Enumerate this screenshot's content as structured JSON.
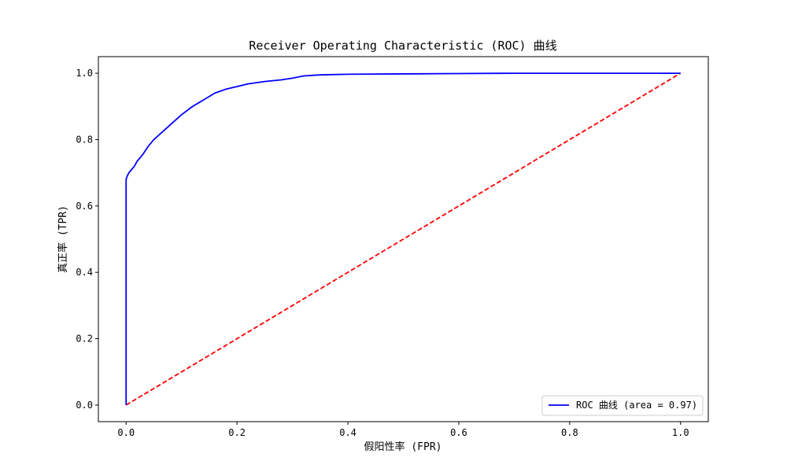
{
  "chart_data": {
    "type": "line",
    "title": "Receiver Operating Characteristic (ROC) 曲线",
    "xlabel": "假阳性率 (FPR)",
    "ylabel": "真正率 (TPR)",
    "xlim": [
      -0.05,
      1.05
    ],
    "ylim": [
      -0.05,
      1.05
    ],
    "xticks": [
      0.0,
      0.2,
      0.4,
      0.6,
      0.8,
      1.0
    ],
    "yticks": [
      0.0,
      0.2,
      0.4,
      0.6,
      0.8,
      1.0
    ],
    "xtick_labels": [
      "0.0",
      "0.2",
      "0.4",
      "0.6",
      "0.8",
      "1.0"
    ],
    "ytick_labels": [
      "0.0",
      "0.2",
      "0.4",
      "0.6",
      "0.8",
      "1.0"
    ],
    "grid": false,
    "legend_position": "lower-right",
    "series": [
      {
        "name": "ROC 曲线 (area = 0.97)",
        "color": "#0000ff",
        "style": "solid",
        "x": [
          0.0,
          0.0,
          0.002,
          0.005,
          0.01,
          0.015,
          0.02,
          0.025,
          0.03,
          0.04,
          0.05,
          0.06,
          0.07,
          0.08,
          0.1,
          0.12,
          0.14,
          0.16,
          0.18,
          0.2,
          0.22,
          0.25,
          0.28,
          0.3,
          0.32,
          0.35,
          0.4,
          0.5,
          0.6,
          0.7,
          0.8,
          0.9,
          1.0
        ],
        "y": [
          0.0,
          0.68,
          0.69,
          0.7,
          0.71,
          0.72,
          0.735,
          0.745,
          0.755,
          0.78,
          0.8,
          0.815,
          0.83,
          0.845,
          0.875,
          0.9,
          0.92,
          0.94,
          0.952,
          0.96,
          0.968,
          0.975,
          0.98,
          0.985,
          0.992,
          0.995,
          0.997,
          0.998,
          0.999,
          1.0,
          1.0,
          1.0,
          1.0
        ]
      },
      {
        "name": "",
        "color": "#ff0000",
        "style": "dashed",
        "x": [
          0.0,
          1.0
        ],
        "y": [
          0.0,
          1.0
        ]
      }
    ]
  }
}
